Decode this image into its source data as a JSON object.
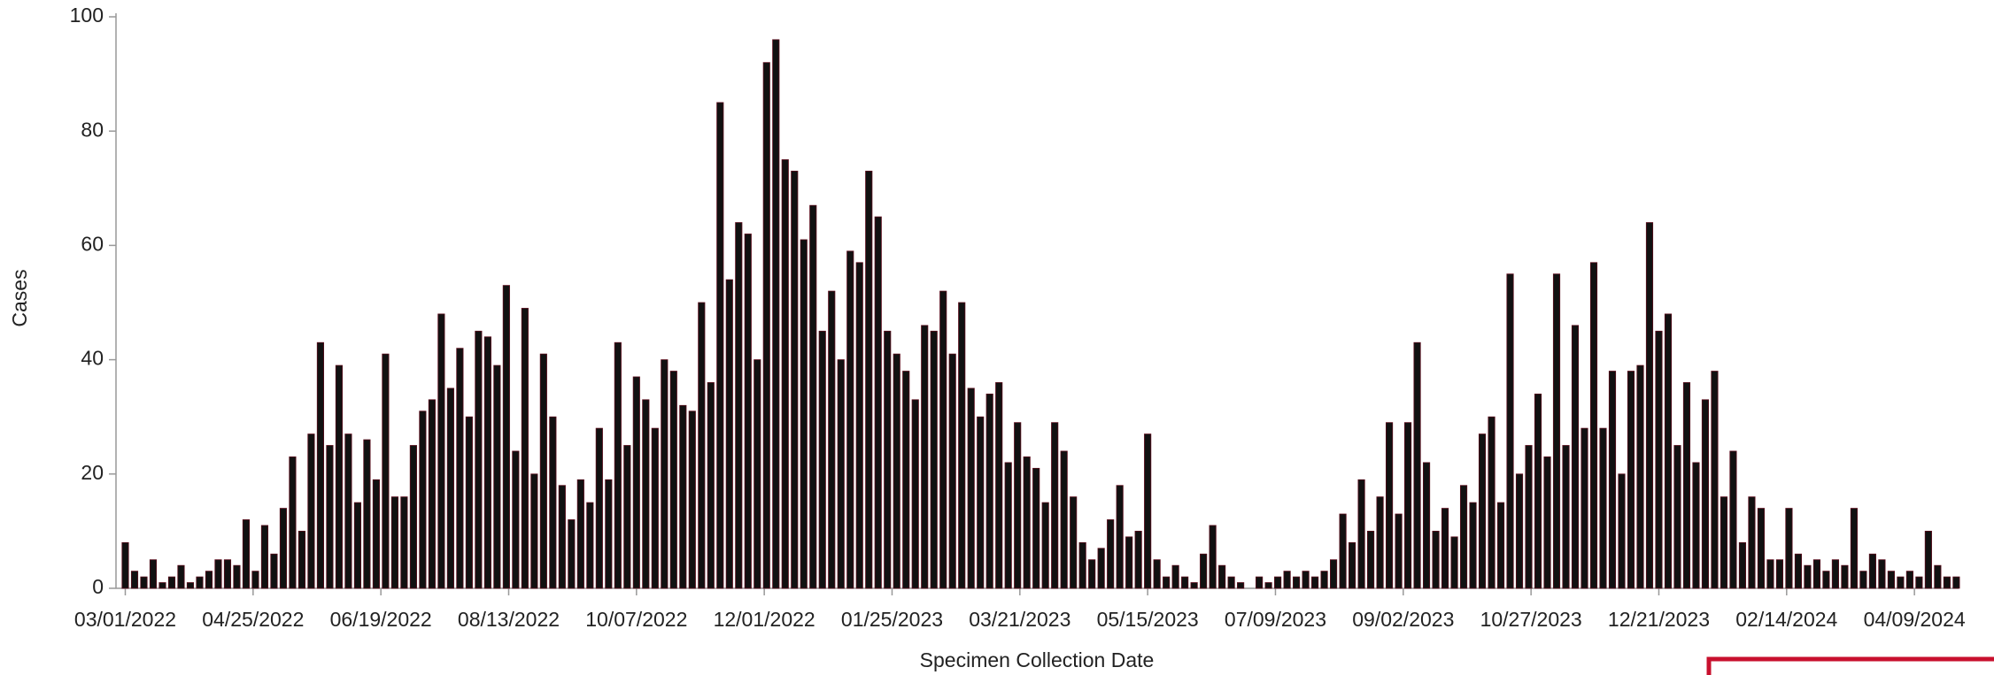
{
  "chart_data": {
    "type": "bar",
    "x_label": "Specimen Collection Date",
    "y_label": "Cases",
    "color": "#111111",
    "xlim": [
      -4,
      789
    ],
    "xticks": [
      {
        "value": 0,
        "label": "03/01/2022"
      },
      {
        "value": 55,
        "label": "04/25/2022"
      },
      {
        "value": 110,
        "label": "06/19/2022"
      },
      {
        "value": 165,
        "label": "08/13/2022"
      },
      {
        "value": 220,
        "label": "10/07/2022"
      },
      {
        "value": 275,
        "label": "12/01/2022"
      },
      {
        "value": 330,
        "label": "01/25/2023"
      },
      {
        "value": 385,
        "label": "03/21/2023"
      },
      {
        "value": 440,
        "label": "05/15/2023"
      },
      {
        "value": 495,
        "label": "07/09/2023"
      },
      {
        "value": 550,
        "label": "09/02/2023"
      },
      {
        "value": 605,
        "label": "10/27/2023"
      },
      {
        "value": 660,
        "label": "12/21/2023"
      },
      {
        "value": 715,
        "label": "02/14/2024"
      },
      {
        "value": 770,
        "label": "04/09/2024"
      }
    ],
    "ylim": [
      0,
      100
    ],
    "yticks": [
      0,
      20,
      40,
      60,
      80,
      100
    ],
    "x": [
      0,
      4,
      8,
      12,
      16,
      20,
      24,
      28,
      32,
      36,
      40,
      44,
      48,
      52,
      56,
      60,
      64,
      68,
      72,
      76,
      80,
      84,
      88,
      92,
      96,
      100,
      104,
      108,
      112,
      116,
      120,
      124,
      128,
      132,
      136,
      140,
      144,
      148,
      152,
      156,
      160,
      164,
      168,
      172,
      176,
      180,
      184,
      188,
      192,
      196,
      200,
      204,
      208,
      212,
      216,
      220,
      224,
      228,
      232,
      236,
      240,
      244,
      248,
      252,
      256,
      260,
      264,
      268,
      272,
      276,
      280,
      284,
      288,
      292,
      296,
      300,
      304,
      308,
      312,
      316,
      320,
      324,
      328,
      332,
      336,
      340,
      344,
      348,
      352,
      356,
      360,
      364,
      368,
      372,
      376,
      380,
      384,
      388,
      392,
      396,
      400,
      404,
      408,
      412,
      416,
      420,
      424,
      428,
      432,
      436,
      440,
      444,
      448,
      452,
      456,
      460,
      464,
      468,
      472,
      476,
      480,
      484,
      488,
      492,
      496,
      500,
      504,
      508,
      512,
      516,
      520,
      524,
      528,
      532,
      536,
      540,
      544,
      548,
      552,
      556,
      560,
      564,
      568,
      572,
      576,
      580,
      584,
      588,
      592,
      596,
      600,
      604,
      608,
      612,
      616,
      620,
      624,
      628,
      632,
      636,
      640,
      644,
      648,
      652,
      656,
      660,
      664,
      668,
      672,
      676,
      680,
      684,
      688,
      692,
      696,
      700,
      704,
      708,
      712,
      716,
      720,
      724,
      728,
      732,
      736,
      740,
      744,
      748,
      752,
      756,
      760,
      764,
      768,
      772,
      776,
      780,
      784,
      788
    ],
    "values": [
      8,
      3,
      2,
      5,
      1,
      2,
      4,
      1,
      2,
      3,
      5,
      5,
      4,
      12,
      3,
      11,
      6,
      14,
      23,
      10,
      27,
      43,
      25,
      39,
      27,
      15,
      26,
      19,
      41,
      16,
      16,
      25,
      31,
      33,
      48,
      35,
      42,
      30,
      45,
      44,
      39,
      53,
      24,
      49,
      20,
      41,
      30,
      18,
      12,
      19,
      15,
      28,
      19,
      43,
      25,
      37,
      33,
      28,
      40,
      38,
      32,
      31,
      50,
      36,
      85,
      54,
      64,
      62,
      40,
      92,
      96,
      75,
      73,
      61,
      67,
      45,
      52,
      40,
      59,
      57,
      73,
      65,
      45,
      41,
      38,
      33,
      46,
      45,
      52,
      41,
      50,
      35,
      30,
      34,
      36,
      22,
      29,
      23,
      21,
      15,
      29,
      24,
      16,
      8,
      5,
      7,
      12,
      18,
      9,
      10,
      27,
      5,
      2,
      4,
      2,
      1,
      6,
      11,
      4,
      2,
      1,
      0,
      2,
      1,
      2,
      3,
      2,
      3,
      2,
      3,
      5,
      13,
      8,
      19,
      10,
      16,
      29,
      13,
      29,
      43,
      22,
      10,
      14,
      9,
      18,
      15,
      27,
      30,
      15,
      55,
      20,
      25,
      34,
      23,
      55,
      25,
      46,
      28,
      57,
      28,
      38,
      20,
      38,
      39,
      64,
      45,
      48,
      25,
      36,
      22,
      33,
      38,
      16,
      24,
      8,
      16,
      14,
      5,
      5,
      14,
      6,
      4,
      5,
      3,
      5,
      4,
      14,
      3,
      6,
      5,
      3,
      2,
      3,
      2,
      10,
      4,
      2,
      2
    ]
  }
}
